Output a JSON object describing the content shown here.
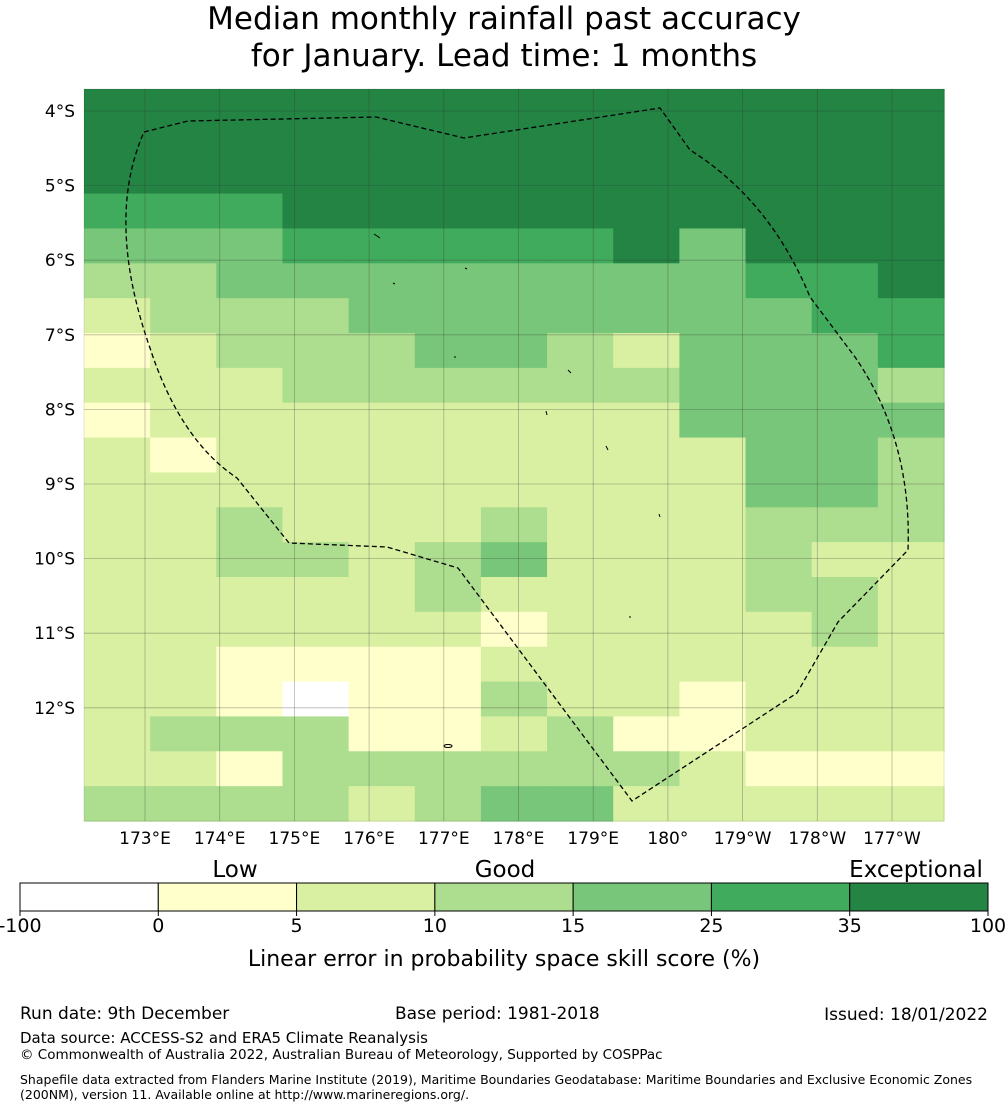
{
  "title": {
    "line1": "Median monthly rainfall past accuracy",
    "line2": "for January. Lead time: 1 months"
  },
  "map": {
    "lat_labels": [
      "4°S",
      "5°S",
      "6°S",
      "7°S",
      "8°S",
      "9°S",
      "10°S",
      "11°S",
      "12°S"
    ],
    "lon_labels": [
      "173°E",
      "174°E",
      "175°E",
      "176°E",
      "177°E",
      "178°E",
      "179°E",
      "180°",
      "179°W",
      "178°W",
      "177°W"
    ],
    "grid": [
      "6666666666666",
      "6666666666666",
      "6666666666666",
      "5556666666666",
      "4445555564666",
      "3344444444556",
      "2333444444455",
      "1233344324445",
      "2223333334443",
      "1222222224444",
      "2122222222443",
      "2222222222443",
      "2232223222333",
      "2233234222322",
      "2222232222332",
      "2222221222232",
      "2211112222222",
      "2210113221222",
      "2333112311222",
      "2213333332111",
      "3333234422222"
    ],
    "colors": {
      "0": "#ffffff",
      "1": "#ffffcc",
      "2": "#d9f0a3",
      "3": "#addd8e",
      "4": "#78c679",
      "5": "#41ab5d",
      "6": "#238443"
    }
  },
  "legend": {
    "categories": [
      "Low",
      "Good",
      "Exceptional"
    ],
    "ticks": [
      "-100",
      "0",
      "5",
      "10",
      "15",
      "25",
      "35",
      "100"
    ],
    "colors": [
      "#ffffff",
      "#ffffcc",
      "#d9f0a3",
      "#addd8e",
      "#78c679",
      "#41ab5d",
      "#238443"
    ],
    "label": "Linear error in probability space skill score (%)"
  },
  "footer": {
    "run_date": "Run date: 9th December",
    "base_period": "Base period: 1981-2018",
    "issued": "Issued: 18/01/2022",
    "data_source": "Data source: ACCESS-S2 and ERA5 Climate Reanalysis",
    "copyright": "© Commonwealth of Australia 2022, Australian Bureau of Meteorology, Supported by COSPPac",
    "shapefile": "Shapefile data extracted from Flanders Marine Institute (2019), Maritime Boundaries Geodatabase: Maritime Boundaries and Exclusive Economic Zones (200NM), version 11. Available online at http://www.marineregions.org/."
  }
}
